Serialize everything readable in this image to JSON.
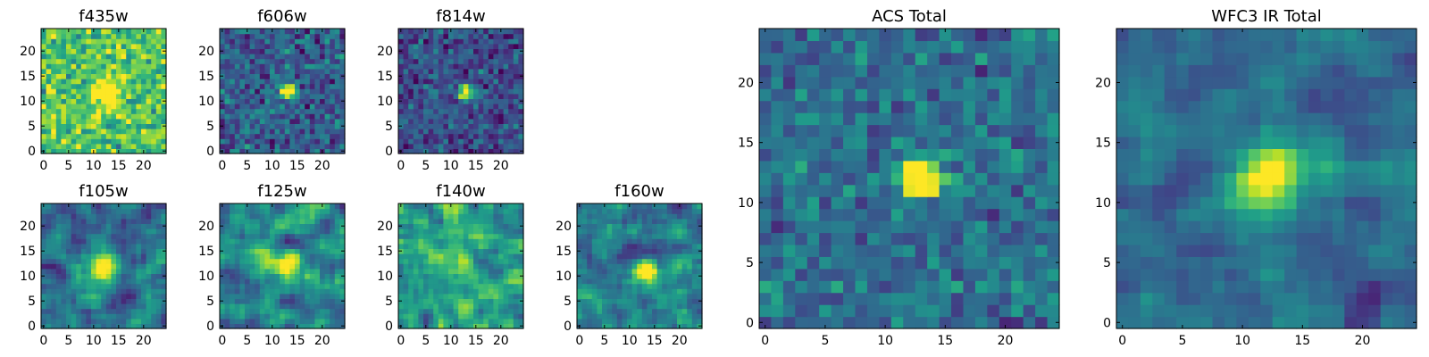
{
  "chart_data": [
    {
      "type": "heatmap",
      "title": "f435w",
      "x_ticks": [
        0,
        5,
        10,
        15,
        20
      ],
      "y_ticks": [
        0,
        5,
        10,
        15,
        20
      ],
      "xlim": [
        0,
        24
      ],
      "ylim": [
        0,
        24
      ],
      "grid": false,
      "colormap": "viridis",
      "source": {
        "x": 13,
        "y": 12,
        "peak": 0.55,
        "sigma": 2.0,
        "noise": 0.14,
        "base": 0.72,
        "seed": 11,
        "smooth": 0
      }
    },
    {
      "type": "heatmap",
      "title": "f606w",
      "x_ticks": [
        0,
        5,
        10,
        15,
        20
      ],
      "y_ticks": [
        0,
        5,
        10,
        15,
        20
      ],
      "xlim": [
        0,
        24
      ],
      "ylim": [
        0,
        24
      ],
      "grid": false,
      "colormap": "viridis",
      "source": {
        "x": 13,
        "y": 12,
        "peak": 1.0,
        "sigma": 1.1,
        "noise": 0.12,
        "base": 0.3,
        "seed": 22,
        "smooth": 0
      }
    },
    {
      "type": "heatmap",
      "title": "f814w",
      "x_ticks": [
        0,
        5,
        10,
        15,
        20
      ],
      "y_ticks": [
        0,
        5,
        10,
        15,
        20
      ],
      "xlim": [
        0,
        24
      ],
      "ylim": [
        0,
        24
      ],
      "grid": false,
      "colormap": "viridis",
      "source": {
        "x": 13,
        "y": 12,
        "peak": 1.0,
        "sigma": 1.0,
        "noise": 0.11,
        "base": 0.24,
        "seed": 33,
        "smooth": 0
      }
    },
    {
      "type": "heatmap",
      "title": "f105w",
      "x_ticks": [
        0,
        5,
        10,
        15,
        20
      ],
      "y_ticks": [
        0,
        5,
        10,
        15,
        20
      ],
      "xlim": [
        0,
        24
      ],
      "ylim": [
        0,
        24
      ],
      "grid": false,
      "colormap": "viridis",
      "source": {
        "x": 12,
        "y": 12,
        "peak": 0.75,
        "sigma": 2.0,
        "noise": 0.16,
        "base": 0.38,
        "seed": 44,
        "smooth": 1
      }
    },
    {
      "type": "heatmap",
      "title": "f125w",
      "x_ticks": [
        0,
        5,
        10,
        15,
        20
      ],
      "y_ticks": [
        0,
        5,
        10,
        15,
        20
      ],
      "xlim": [
        0,
        24
      ],
      "ylim": [
        0,
        24
      ],
      "grid": false,
      "colormap": "viridis",
      "source": {
        "x": 13,
        "y": 12,
        "peak": 0.65,
        "sigma": 1.9,
        "noise": 0.17,
        "base": 0.45,
        "seed": 55,
        "smooth": 1
      }
    },
    {
      "type": "heatmap",
      "title": "f140w",
      "x_ticks": [
        0,
        5,
        10,
        15,
        20
      ],
      "y_ticks": [
        0,
        5,
        10,
        15,
        20
      ],
      "xlim": [
        0,
        24
      ],
      "ylim": [
        0,
        24
      ],
      "grid": false,
      "colormap": "viridis",
      "source": {
        "x": 12,
        "y": 12,
        "peak": 0.45,
        "sigma": 1.5,
        "noise": 0.17,
        "base": 0.58,
        "seed": 66,
        "smooth": 1
      }
    },
    {
      "type": "heatmap",
      "title": "f160w",
      "x_ticks": [
        0,
        5,
        10,
        15,
        20
      ],
      "y_ticks": [
        0,
        5,
        10,
        15,
        20
      ],
      "xlim": [
        0,
        24
      ],
      "ylim": [
        0,
        24
      ],
      "grid": false,
      "colormap": "viridis",
      "source": {
        "x": 13,
        "y": 11,
        "peak": 0.75,
        "sigma": 1.6,
        "noise": 0.17,
        "base": 0.4,
        "seed": 77,
        "smooth": 1
      }
    },
    {
      "type": "heatmap",
      "title": "ACS Total",
      "x_ticks": [
        0,
        5,
        10,
        15,
        20
      ],
      "y_ticks": [
        0,
        5,
        10,
        15,
        20
      ],
      "xlim": [
        0,
        24
      ],
      "ylim": [
        0,
        24
      ],
      "grid": false,
      "colormap": "viridis",
      "source": {
        "x": 13,
        "y": 12,
        "peak": 1.0,
        "sigma": 1.2,
        "noise": 0.1,
        "base": 0.36,
        "seed": 88,
        "smooth": 0
      }
    },
    {
      "type": "heatmap",
      "title": "WFC3 IR Total",
      "x_ticks": [
        0,
        5,
        10,
        15,
        20
      ],
      "y_ticks": [
        0,
        5,
        10,
        15,
        20
      ],
      "xlim": [
        0,
        24
      ],
      "ylim": [
        0,
        24
      ],
      "grid": false,
      "colormap": "viridis",
      "source": {
        "x": 12,
        "y": 12,
        "peak": 0.78,
        "sigma": 2.0,
        "noise": 0.12,
        "base": 0.36,
        "seed": 99,
        "smooth": 1
      }
    }
  ]
}
